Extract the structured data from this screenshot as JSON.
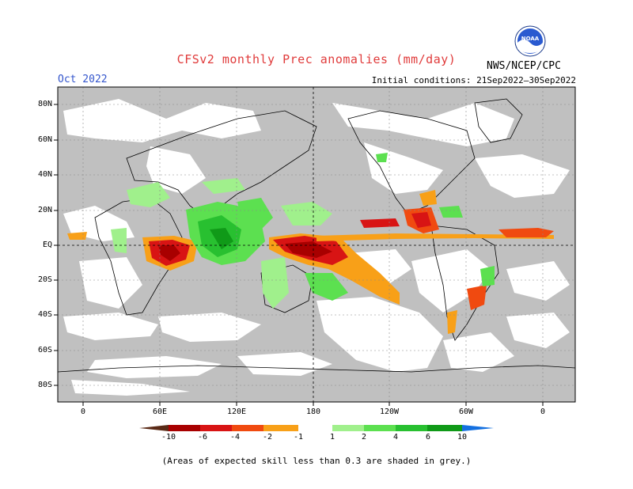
{
  "header": {
    "title": "CFSv2 monthly Prec anomalies (mm/day)",
    "month": "Oct 2022",
    "initial_conditions": "Initial conditions: 21Sep2022–30Sep2022",
    "agency": "NWS/NCEP/CPC",
    "logo_text": "NOAA"
  },
  "map": {
    "lat_labels": [
      "80N",
      "60N",
      "40N",
      "20N",
      "EQ",
      "20S",
      "40S",
      "60S",
      "80S"
    ],
    "lon_labels": [
      "0",
      "60E",
      "120E",
      "180",
      "120W",
      "60W",
      "0"
    ],
    "land_color": "#ffffff",
    "low_skill_color": "#c0c0c0"
  },
  "colorbar": {
    "labels": [
      "-10",
      "-6",
      "-4",
      "-2",
      "-1",
      "1",
      "2",
      "4",
      "6",
      "10"
    ],
    "colors": [
      "#5a2a16",
      "#a80000",
      "#d81414",
      "#f04a10",
      "#f8a018",
      "#ffffff",
      "#a0f08c",
      "#5ce050",
      "#28c030",
      "#109a18",
      "#1470e0"
    ]
  },
  "footnote": "(Areas of expected skill less than 0.3 are shaded in grey.)"
}
